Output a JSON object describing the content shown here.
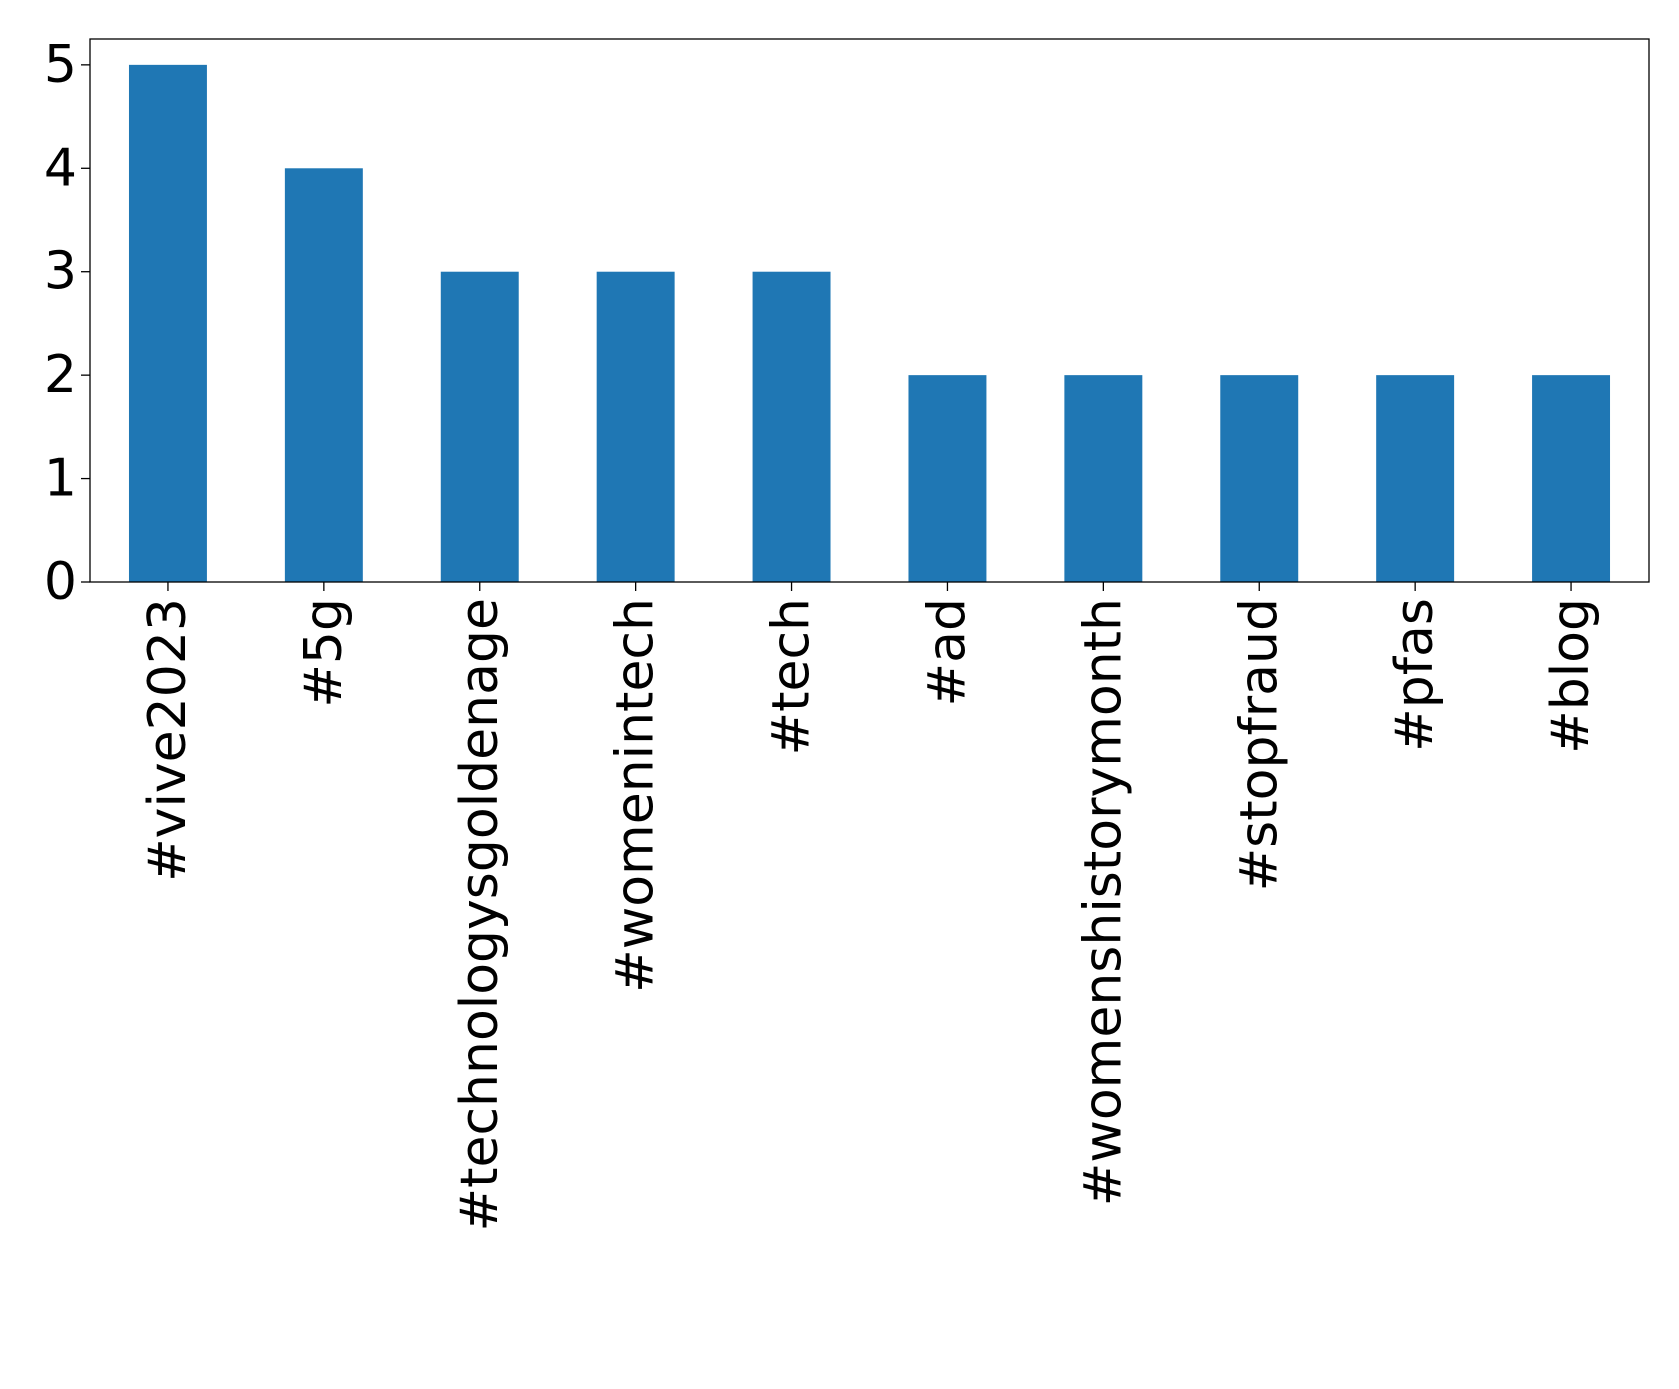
{
  "chart_data": {
    "type": "bar",
    "title": "",
    "xlabel": "",
    "ylabel": "",
    "categories": [
      "#vive2023",
      "#5g",
      "#technologysgoldenage",
      "#womenintech",
      "#tech",
      "#ad",
      "#womenshistorymonth",
      "#stopfraud",
      "#pfas",
      "#blog"
    ],
    "values": [
      5,
      4,
      3,
      3,
      3,
      2,
      2,
      2,
      2,
      2
    ],
    "yticks": [
      "0",
      "1",
      "2",
      "3",
      "4",
      "5"
    ],
    "ylim": [
      0,
      5.25
    ],
    "bar_color": "#1f77b4",
    "grid": false,
    "legend": "none"
  }
}
